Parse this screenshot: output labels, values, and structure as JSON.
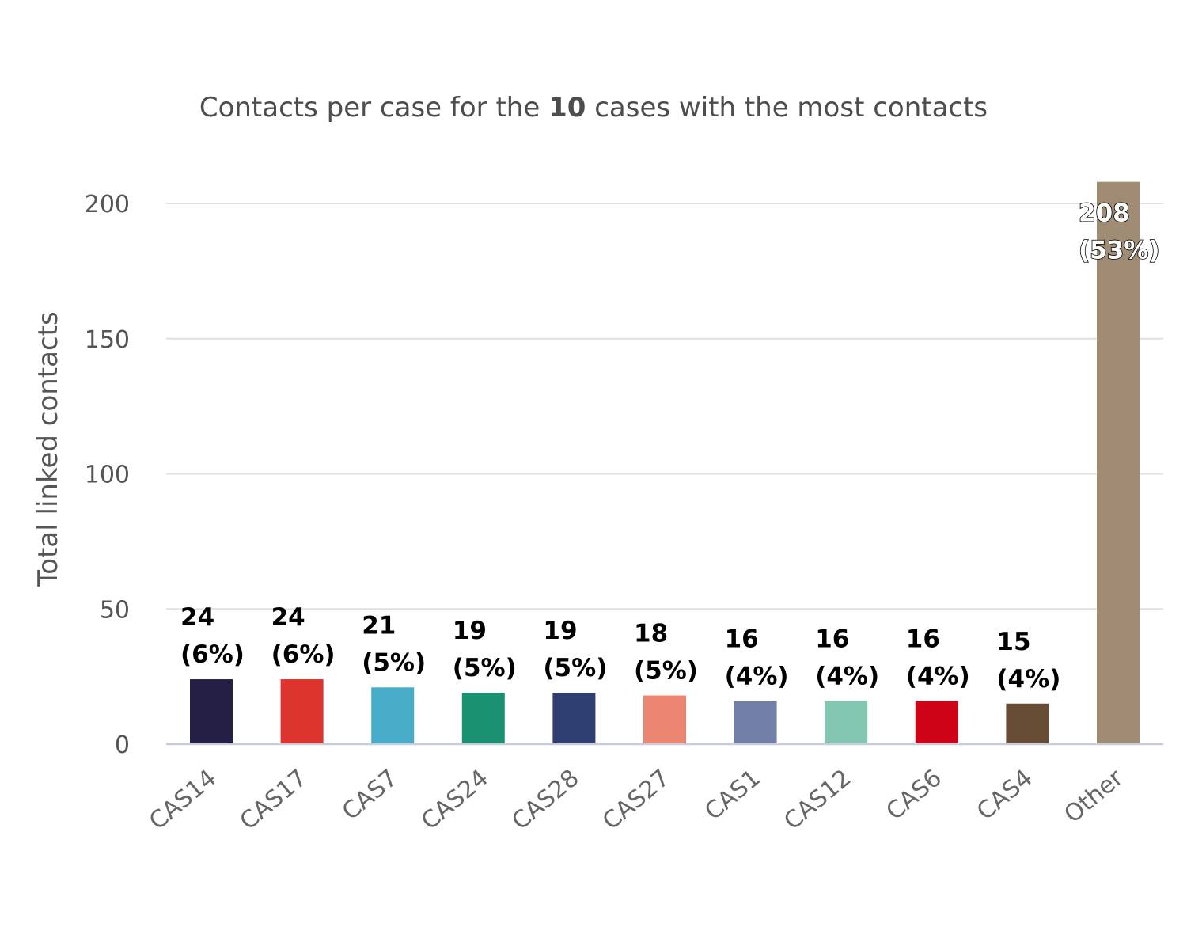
{
  "chart_data": {
    "type": "bar",
    "title_parts": [
      "Contacts per case for the ",
      "10",
      " cases with the most contacts"
    ],
    "xlabel": "",
    "ylabel": "Total linked contacts",
    "ylim": [
      0,
      215
    ],
    "yticks": [
      0,
      50,
      100,
      150,
      200
    ],
    "grid": true,
    "categories": [
      "CAS14",
      "CAS17",
      "CAS7",
      "CAS24",
      "CAS28",
      "CAS27",
      "CAS1",
      "CAS12",
      "CAS6",
      "CAS4",
      "Other"
    ],
    "values": [
      24,
      24,
      21,
      19,
      19,
      18,
      16,
      16,
      16,
      15,
      208
    ],
    "percent_labels": [
      "(6%)",
      "(6%)",
      "(5%)",
      "(5%)",
      "(5%)",
      "(5%)",
      "(4%)",
      "(4%)",
      "(4%)",
      "(4%)",
      "(53%)"
    ],
    "colors": [
      "#261f45",
      "#dd352e",
      "#47acc8",
      "#1a9272",
      "#2f3f72",
      "#ec8670",
      "#7280a7",
      "#83c7b2",
      "#cf0317",
      "#674c36",
      "#a08c74"
    ]
  }
}
